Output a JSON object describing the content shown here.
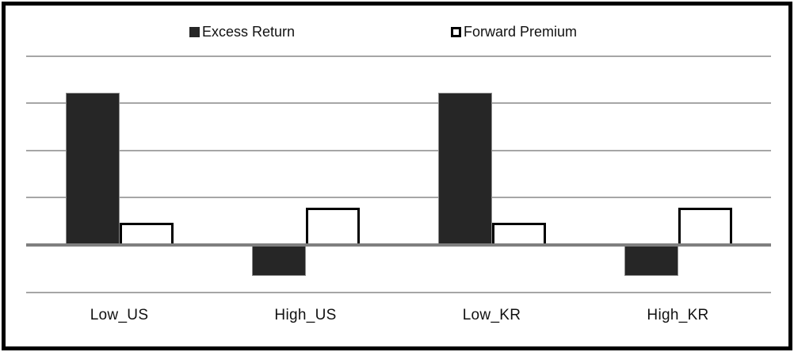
{
  "chart": {
    "legend": [
      {
        "id": "excess-return",
        "label": "Excess Return",
        "marker": "filled"
      },
      {
        "id": "forward-premium",
        "label": "Forward Premium",
        "marker": "outlined"
      }
    ],
    "colors": {
      "filled_bar": "#262626",
      "filled_bar_edge": "#8c8c8c",
      "outlined_bar_fill": "#ffffff",
      "outlined_bar_border": "#000000",
      "gridline": "#a6a6a6",
      "zero_line": "#7f7f7f",
      "frame": "#000000",
      "text": "#111111",
      "background": "#ffffff"
    }
  },
  "chart_data": {
    "type": "bar",
    "title": "",
    "xlabel": "",
    "ylabel": "",
    "categories": [
      "Low_US",
      "High_US",
      "Low_KR",
      "High_KR"
    ],
    "series": [
      {
        "name": "Excess Return",
        "style": "filled",
        "values": [
          3.22,
          -0.62,
          3.22,
          -0.62
        ]
      },
      {
        "name": "Forward Premium",
        "style": "outlined",
        "values": [
          0.47,
          0.79,
          0.47,
          0.79
        ]
      }
    ],
    "ylim": [
      -1.3,
      4.05
    ],
    "gridline_step": 1,
    "grid": "horizontal",
    "axis_tick_labels": "none",
    "legend_position": "top"
  }
}
